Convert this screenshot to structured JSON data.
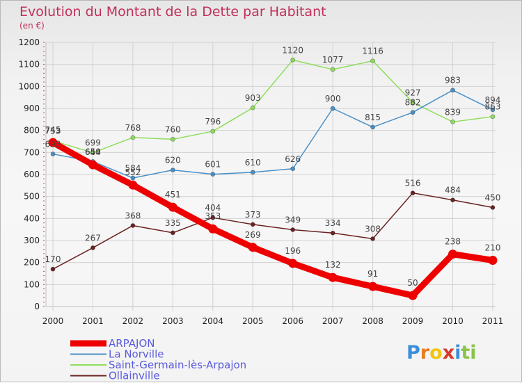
{
  "chart_data": {
    "type": "line",
    "title": "Evolution du Montant de la Dette par Habitant",
    "subtitle": "(en €)",
    "xlabel": "",
    "ylabel": "",
    "ylim": [
      0,
      1200
    ],
    "yticks": [
      0,
      100,
      200,
      300,
      400,
      500,
      600,
      700,
      800,
      900,
      1000,
      1100,
      1200
    ],
    "categories": [
      "2000",
      "2001",
      "2002",
      "2003",
      "2004",
      "2005",
      "2006",
      "2007",
      "2008",
      "2009",
      "2010",
      "2011"
    ],
    "grid": true,
    "legend_position": "bottom-left",
    "series": [
      {
        "name": "ARPAJON",
        "color": "#ee0000",
        "values": [
          745,
          644,
          552,
          451,
          353,
          269,
          196,
          132,
          91,
          50,
          238,
          210
        ]
      },
      {
        "name": "La Norville",
        "color": "#4a90c8",
        "values": [
          693,
          659,
          584,
          620,
          601,
          610,
          626,
          900,
          815,
          882,
          983,
          894
        ]
      },
      {
        "name": "Saint-Germain-lès-Arpajon",
        "color": "#8fdd5c",
        "values": [
          753,
          699,
          768,
          760,
          796,
          903,
          1120,
          1077,
          1116,
          927,
          839,
          863
        ]
      },
      {
        "name": "Ollainville",
        "color": "#6a2222",
        "values": [
          170,
          267,
          368,
          335,
          404,
          373,
          349,
          334,
          308,
          516,
          484,
          450
        ]
      }
    ]
  },
  "logo": {
    "letters": [
      "P",
      "r",
      "o",
      "x",
      "i",
      "t",
      "i"
    ],
    "colors": [
      "#3b8fd9",
      "#e67e22",
      "#f1c40f",
      "#d9392b",
      "#3b8fd9",
      "#8bc34a",
      "#8bc34a"
    ]
  }
}
